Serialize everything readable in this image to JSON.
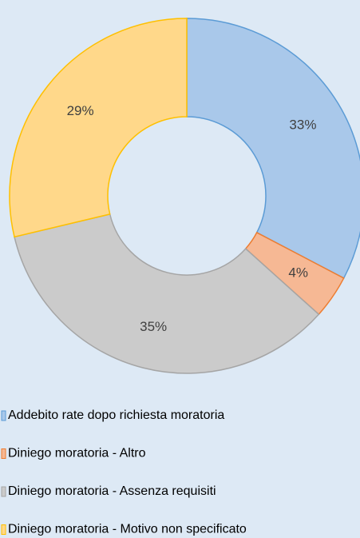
{
  "chart_data": {
    "type": "pie",
    "donut": true,
    "categories": [
      "Addebito rate dopo richiesta moratoria",
      "Diniego moratoria - Altro",
      "Diniego moratoria - Assenza requisiti",
      "Diniego moratoria - Motivo non specificato"
    ],
    "values": [
      33,
      4,
      35,
      29
    ],
    "value_labels": [
      "33%",
      "4%",
      "35%",
      "29%"
    ],
    "colors": [
      "#a9c8ea",
      "#f6b894",
      "#cbcbcb",
      "#ffd88a"
    ],
    "edge_colors": [
      "#5b9bd5",
      "#ed7d31",
      "#a5a5a5",
      "#ffc000"
    ]
  }
}
